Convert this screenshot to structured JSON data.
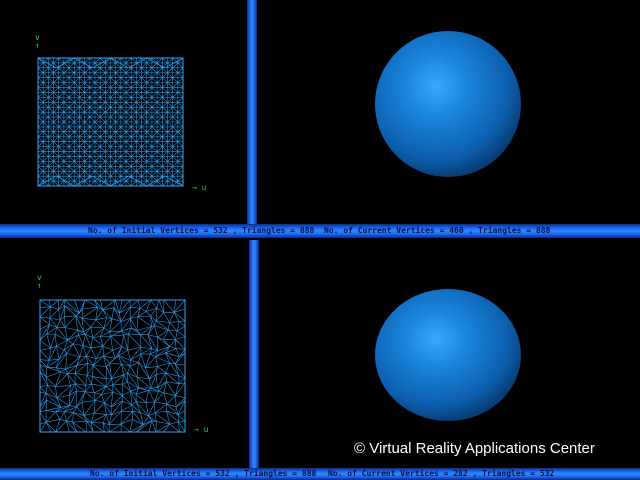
{
  "views": {
    "top": {
      "status_initial": "No. of Initial Vertices = 532 , Triangles = 888",
      "status_current": "No. of Current Vertices = 460 , Triangles = 888",
      "axis_v": "v",
      "axis_u": "u"
    },
    "bottom": {
      "status_initial": "No. of Initial Vertices = 532 , Triangles = 888",
      "status_current": "No. of Current Vertices = 282 , Triangles = 532",
      "axis_v": "v",
      "axis_u": "u"
    }
  },
  "copyright": "© Virtual Reality Applications Center",
  "colors": {
    "mesh": "#2aa6ff",
    "axis": "#1fd05a",
    "divider": "#2f86ff",
    "sphere": "#1a7fd6"
  }
}
